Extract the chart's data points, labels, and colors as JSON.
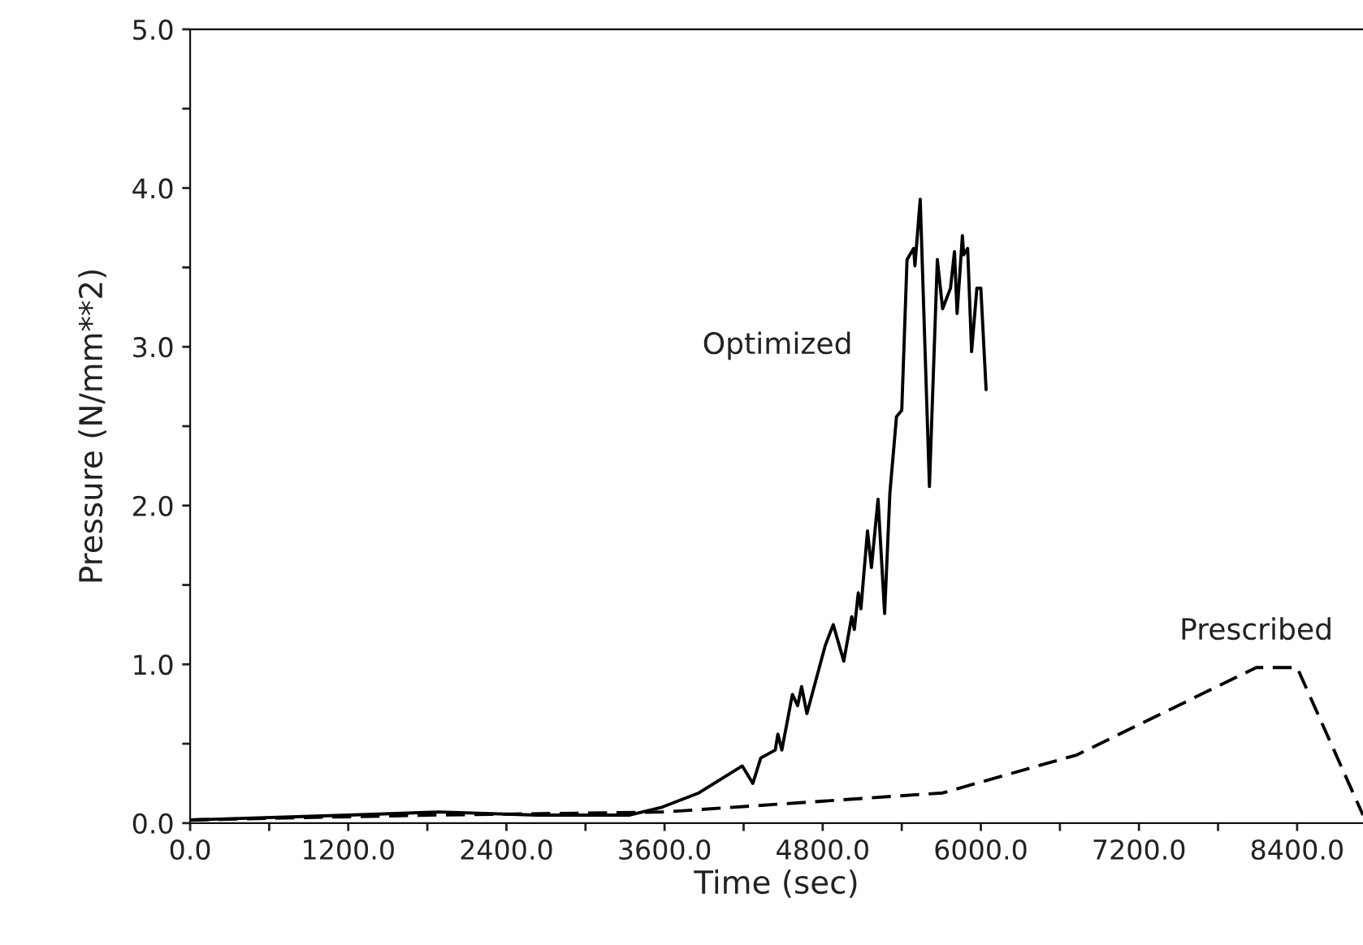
{
  "chart_data": {
    "type": "line",
    "xlabel": "Time (sec)",
    "ylabel": "Pressure (N/mm**2)",
    "xlim": [
      0,
      8900
    ],
    "ylim": [
      0,
      5.0
    ],
    "xticks": [
      {
        "value": 0,
        "label": "0.0"
      },
      {
        "value": 600,
        "label": null
      },
      {
        "value": 1200,
        "label": "1200.0"
      },
      {
        "value": 1800,
        "label": null
      },
      {
        "value": 2400,
        "label": "2400.0"
      },
      {
        "value": 3000,
        "label": null
      },
      {
        "value": 3600,
        "label": "3600.0"
      },
      {
        "value": 4200,
        "label": null
      },
      {
        "value": 4800,
        "label": "4800.0"
      },
      {
        "value": 5400,
        "label": null
      },
      {
        "value": 6000,
        "label": "6000.0"
      },
      {
        "value": 6600,
        "label": null
      },
      {
        "value": 7200,
        "label": "7200.0"
      },
      {
        "value": 7800,
        "label": null
      },
      {
        "value": 8400,
        "label": "8400.0"
      }
    ],
    "yticks": [
      {
        "value": 0,
        "label": "0.0"
      },
      {
        "value": 0.5,
        "label": null
      },
      {
        "value": 1,
        "label": "1.0"
      },
      {
        "value": 1.5,
        "label": null
      },
      {
        "value": 2,
        "label": "2.0"
      },
      {
        "value": 2.5,
        "label": null
      },
      {
        "value": 3,
        "label": "3.0"
      },
      {
        "value": 3.5,
        "label": null
      },
      {
        "value": 4,
        "label": "4.0"
      },
      {
        "value": 4.5,
        "label": null
      },
      {
        "value": 5,
        "label": "5.0"
      }
    ],
    "grid": false,
    "legend": false,
    "series": [
      {
        "name": "Optimized",
        "color": "#000000",
        "line_style": "solid",
        "x": [
          0,
          1200,
          1890,
          2630,
          3330,
          3580,
          3860,
          4190,
          4270,
          4330,
          4440,
          4460,
          4490,
          4570,
          4610,
          4640,
          4680,
          4820,
          4880,
          4960,
          5020,
          5040,
          5070,
          5090,
          5140,
          5170,
          5220,
          5270,
          5310,
          5360,
          5400,
          5440,
          5490,
          5500,
          5540,
          5610,
          5670,
          5710,
          5770,
          5800,
          5820,
          5860,
          5870,
          5900,
          5930,
          5970,
          6000,
          6040
        ],
        "values": [
          0.02,
          0.05,
          0.07,
          0.05,
          0.05,
          0.1,
          0.19,
          0.36,
          0.25,
          0.41,
          0.46,
          0.56,
          0.46,
          0.81,
          0.74,
          0.86,
          0.69,
          1.12,
          1.25,
          1.02,
          1.3,
          1.22,
          1.45,
          1.35,
          1.84,
          1.61,
          2.04,
          1.32,
          2.08,
          2.56,
          2.6,
          3.55,
          3.62,
          3.51,
          3.93,
          2.12,
          3.55,
          3.24,
          3.37,
          3.6,
          3.21,
          3.7,
          3.58,
          3.62,
          2.97,
          3.37,
          3.37,
          2.73
        ]
      },
      {
        "name": "Prescribed",
        "color": "#000000",
        "line_style": "dashed",
        "x": [
          0,
          1800,
          3600,
          5710,
          6730,
          8090,
          8400,
          8900
        ],
        "values": [
          0.02,
          0.05,
          0.07,
          0.19,
          0.43,
          0.98,
          0.98,
          0.05
        ]
      }
    ]
  }
}
